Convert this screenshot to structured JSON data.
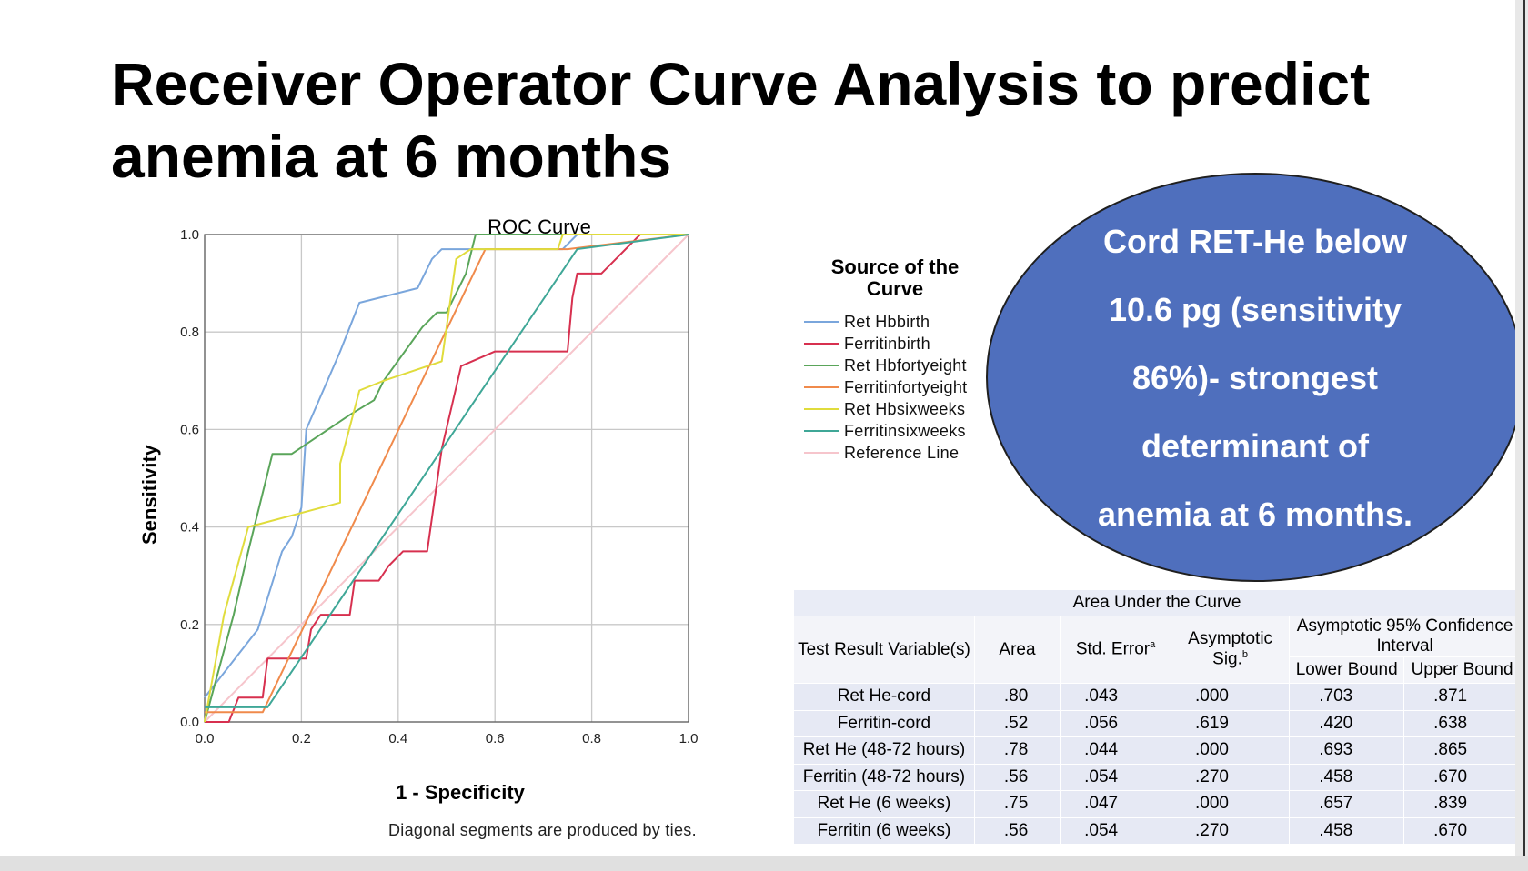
{
  "slide_title": {
    "line1": "Receiver Operator Curve Analysis to predict",
    "line2": "anemia at 6 months"
  },
  "callout": {
    "lines": [
      "Cord RET-He below",
      "10.6 pg (sensitivity",
      "86%)- strongest",
      "determinant of",
      "anemia  at 6 months."
    ],
    "color": "#4f6fbd"
  },
  "footnote": "Diagonal segments are produced by ties.",
  "chart_data": {
    "type": "line",
    "title": "ROC Curve",
    "xlabel": "1 - Specificity",
    "ylabel": "Sensitivity",
    "xlim": [
      0,
      1
    ],
    "ylim": [
      0,
      1
    ],
    "xticks": [
      "0.0",
      "0.2",
      "0.4",
      "0.6",
      "0.8",
      "1.0"
    ],
    "yticks": [
      "0.0",
      "0.2",
      "0.4",
      "0.6",
      "0.8",
      "1.0"
    ],
    "grid": true,
    "legend_title": "Source of the Curve",
    "legend_position": "right",
    "series": [
      {
        "name": "Ret Hbbirth",
        "color": "#7aa6dc",
        "points": [
          [
            0,
            0.05
          ],
          [
            0.11,
            0.19
          ],
          [
            0.16,
            0.35
          ],
          [
            0.18,
            0.38
          ],
          [
            0.2,
            0.44
          ],
          [
            0.21,
            0.6
          ],
          [
            0.28,
            0.76
          ],
          [
            0.32,
            0.86
          ],
          [
            0.44,
            0.89
          ],
          [
            0.47,
            0.95
          ],
          [
            0.49,
            0.97
          ],
          [
            0.74,
            0.97
          ],
          [
            0.77,
            1.0
          ],
          [
            1,
            1
          ]
        ]
      },
      {
        "name": "Ferritinbirth",
        "color": "#d7304f",
        "points": [
          [
            0,
            0
          ],
          [
            0.05,
            0
          ],
          [
            0.07,
            0.05
          ],
          [
            0.12,
            0.05
          ],
          [
            0.13,
            0.13
          ],
          [
            0.21,
            0.13
          ],
          [
            0.22,
            0.19
          ],
          [
            0.24,
            0.22
          ],
          [
            0.3,
            0.22
          ],
          [
            0.31,
            0.29
          ],
          [
            0.36,
            0.29
          ],
          [
            0.38,
            0.32
          ],
          [
            0.41,
            0.35
          ],
          [
            0.46,
            0.35
          ],
          [
            0.49,
            0.56
          ],
          [
            0.53,
            0.73
          ],
          [
            0.6,
            0.76
          ],
          [
            0.75,
            0.76
          ],
          [
            0.76,
            0.87
          ],
          [
            0.77,
            0.92
          ],
          [
            0.82,
            0.92
          ],
          [
            0.9,
            1.0
          ],
          [
            1,
            1
          ]
        ]
      },
      {
        "name": "Ret Hbfortyeight",
        "color": "#5aa55a",
        "points": [
          [
            0,
            0
          ],
          [
            0.06,
            0.22
          ],
          [
            0.09,
            0.35
          ],
          [
            0.14,
            0.55
          ],
          [
            0.18,
            0.55
          ],
          [
            0.3,
            0.63
          ],
          [
            0.35,
            0.66
          ],
          [
            0.37,
            0.7
          ],
          [
            0.45,
            0.81
          ],
          [
            0.48,
            0.84
          ],
          [
            0.5,
            0.84
          ],
          [
            0.54,
            0.92
          ],
          [
            0.56,
            1.0
          ],
          [
            1,
            1
          ]
        ]
      },
      {
        "name": "Ferritinfortyeight",
        "color": "#f08a4b",
        "points": [
          [
            0,
            0.02
          ],
          [
            0.12,
            0.02
          ],
          [
            0.58,
            0.97
          ],
          [
            0.75,
            0.97
          ],
          [
            1,
            1
          ]
        ]
      },
      {
        "name": "Ret Hbsixweeks",
        "color": "#e0dc3c",
        "points": [
          [
            0,
            0
          ],
          [
            0.04,
            0.22
          ],
          [
            0.09,
            0.4
          ],
          [
            0.28,
            0.45
          ],
          [
            0.28,
            0.53
          ],
          [
            0.32,
            0.68
          ],
          [
            0.37,
            0.7
          ],
          [
            0.49,
            0.74
          ],
          [
            0.52,
            0.95
          ],
          [
            0.55,
            0.97
          ],
          [
            0.73,
            0.97
          ],
          [
            0.74,
            1.0
          ],
          [
            1,
            1
          ]
        ]
      },
      {
        "name": "Ferritinsixweeks",
        "color": "#3fa797",
        "points": [
          [
            0,
            0.03
          ],
          [
            0.13,
            0.03
          ],
          [
            0.77,
            0.97
          ],
          [
            1,
            1
          ]
        ]
      },
      {
        "name": "Reference Line",
        "color": "#f6c5cc",
        "points": [
          [
            0,
            0
          ],
          [
            1,
            1
          ]
        ]
      }
    ]
  },
  "auc_table": {
    "caption": "Area Under the Curve",
    "headers": {
      "variable": "Test Result Variable(s)",
      "area": "Area",
      "std_error": "Std. Error",
      "std_error_sup": "a",
      "sig": "Asymptotic",
      "sig_line2": "Sig.",
      "sig_sup": "b",
      "ci": "Asymptotic 95% Confidence",
      "ci_line2": "Interval",
      "lower": "Lower Bound",
      "upper": "Upper Bound"
    },
    "rows": [
      {
        "variable": "Ret He-cord",
        "area": ".80",
        "se": ".043",
        "sig": ".000",
        "lower": ".703",
        "upper": ".871"
      },
      {
        "variable": "Ferritin-cord",
        "area": ".52",
        "se": ".056",
        "sig": ".619",
        "lower": ".420",
        "upper": ".638"
      },
      {
        "variable": "Ret He (48-72 hours)",
        "area": ".78",
        "se": ".044",
        "sig": ".000",
        "lower": ".693",
        "upper": ".865"
      },
      {
        "variable": "Ferritin (48-72 hours)",
        "area": ".56",
        "se": ".054",
        "sig": ".270",
        "lower": ".458",
        "upper": ".670"
      },
      {
        "variable": "Ret He (6 weeks)",
        "area": ".75",
        "se": ".047",
        "sig": ".000",
        "lower": ".657",
        "upper": ".839"
      },
      {
        "variable": "Ferritin (6 weeks)",
        "area": ".56",
        "se": ".054",
        "sig": ".270",
        "lower": ".458",
        "upper": ".670"
      }
    ]
  }
}
